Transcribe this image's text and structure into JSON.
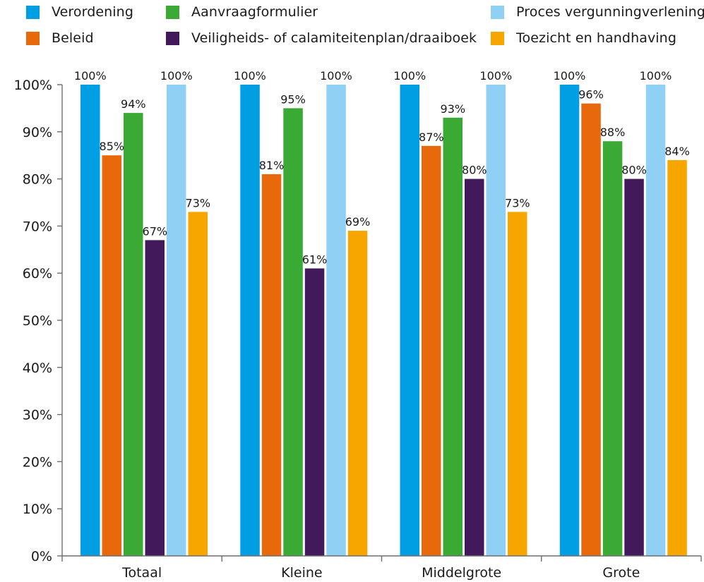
{
  "chart_data": {
    "type": "bar",
    "categories": [
      "Totaal",
      "Kleine",
      "Middelgrote",
      "Grote"
    ],
    "series": [
      {
        "name": "Verordening",
        "color": "#009fe3",
        "values": [
          100,
          100,
          100,
          100
        ],
        "labels": [
          "100%",
          "100%",
          "100%",
          "100%"
        ]
      },
      {
        "name": "Beleid",
        "color": "#e8690c",
        "values": [
          85,
          81,
          87,
          96
        ],
        "labels": [
          "85%",
          "81%",
          "87%",
          "96%"
        ]
      },
      {
        "name": "Aanvraagformulier",
        "color": "#3aaa35",
        "values": [
          94,
          95,
          93,
          88
        ],
        "labels": [
          "94%",
          "95%",
          "93%",
          "88%"
        ]
      },
      {
        "name": "Veiligheids- of calamiteitenplan/draaiboek",
        "color": "#42195a",
        "values": [
          67,
          61,
          80,
          80
        ],
        "labels": [
          "67%",
          "61%",
          "80%",
          "80%"
        ]
      },
      {
        "name": "Proces vergunningverlening",
        "color": "#8fd0f4",
        "values": [
          100,
          100,
          100,
          100
        ],
        "labels": [
          "100%",
          "100%",
          "100%",
          "100%"
        ]
      },
      {
        "name": "Toezicht en handhaving",
        "color": "#f7a600",
        "values": [
          73,
          69,
          73,
          84
        ],
        "labels": [
          "73%",
          "69%",
          "73%",
          "84%"
        ]
      }
    ],
    "ylim": [
      0,
      100
    ],
    "yticks": [
      "0%",
      "10%",
      "20%",
      "30%",
      "40%",
      "50%",
      "60%",
      "70%",
      "80%",
      "90%",
      "100%"
    ],
    "title": "",
    "xlabel": "",
    "ylabel": "",
    "grid": false,
    "legend": "top"
  }
}
